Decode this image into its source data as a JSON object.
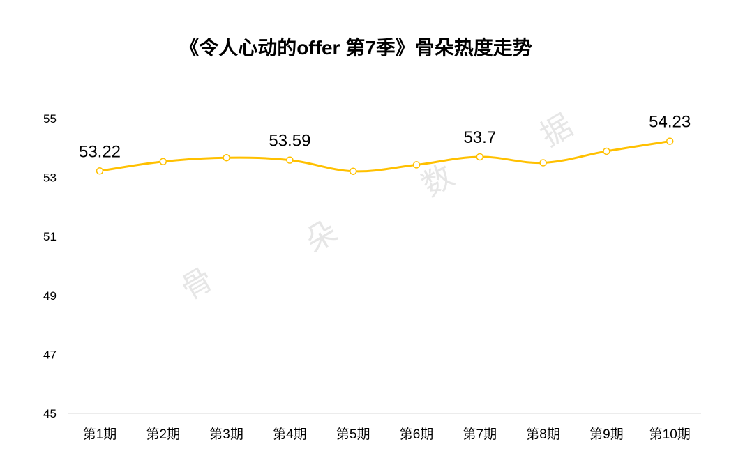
{
  "chart_data": {
    "type": "line",
    "title": "《令人心动的offer 第7季》骨朵热度走势",
    "xlabel": "",
    "ylabel": "",
    "categories": [
      "第1期",
      "第2期",
      "第3期",
      "第4期",
      "第5期",
      "第6期",
      "第7期",
      "第8期",
      "第9期",
      "第10期"
    ],
    "series": [
      {
        "values": [
          53.22,
          53.54,
          53.67,
          53.59,
          53.21,
          53.43,
          53.7,
          53.5,
          53.89,
          54.23
        ]
      }
    ],
    "data_labels": [
      {
        "index": 0,
        "text": "53.22"
      },
      {
        "index": 3,
        "text": "53.59"
      },
      {
        "index": 6,
        "text": "53.7"
      },
      {
        "index": 9,
        "text": "54.23"
      }
    ],
    "ylim": [
      45,
      55
    ],
    "yticks": [
      "45",
      "47",
      "49",
      "51",
      "53",
      "55"
    ],
    "grid": false,
    "smooth": true,
    "line_color": "#FFC000",
    "watermark": [
      "骨",
      "朵",
      "数",
      "据"
    ]
  }
}
